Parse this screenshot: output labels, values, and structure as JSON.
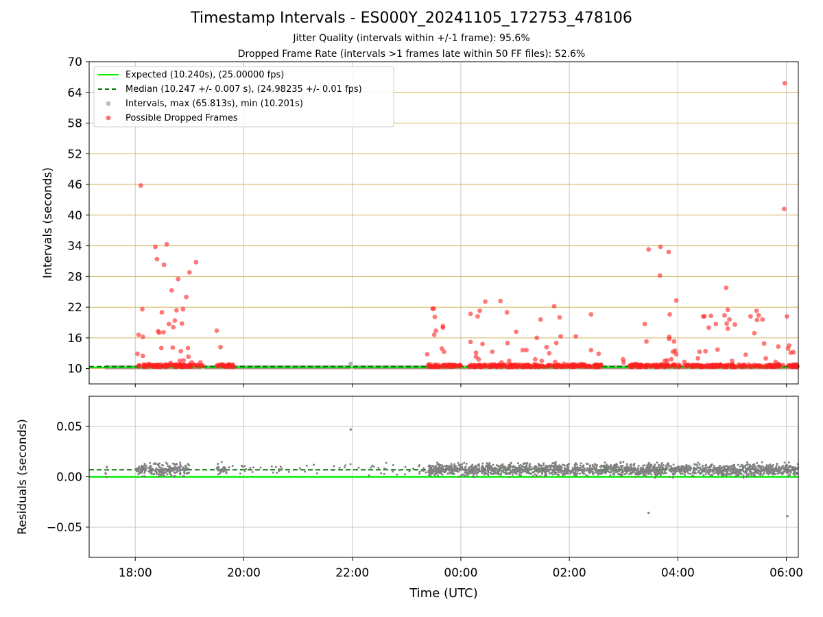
{
  "header": {
    "title": "Timestamp Intervals - ES000Y_20241105_172753_478106",
    "subtitle1": "Jitter Quality (intervals within +/-1 frame): 95.6%",
    "subtitle2": "Dropped Frame Rate (intervals >1 frames late within 50 FF files): 52.6%"
  },
  "colors": {
    "expected": "#00ee00",
    "median": "#007700",
    "intervals": "#999999",
    "dropped": "#ff2020",
    "hgrid": "#d2b25a",
    "vgrid": "#c8c8c8"
  },
  "chart_data": [
    {
      "type": "scatter",
      "panel": "intervals",
      "xlabel": "",
      "ylabel": "Intervals (seconds)",
      "x_unit": "hours since 00:00 UTC",
      "xlim": [
        -6.85,
        6.22
      ],
      "ylim": [
        7,
        70
      ],
      "yticks": [
        10,
        16,
        22,
        28,
        34,
        40,
        46,
        52,
        58,
        64,
        70
      ],
      "xticks": [
        -6,
        -4,
        -2,
        0,
        2,
        4,
        6
      ],
      "grid": true,
      "legend_position": "top-left",
      "legend": [
        "Expected (10.240s), (25.00000 fps)",
        "Median (10.247 +/- 0.007 s), (24.98235 +/- 0.01 fps)",
        "Intervals, max (65.813s), min (10.201s)",
        "Possible Dropped Frames"
      ],
      "expected_value": 10.24,
      "median_value": 10.247,
      "baseline_segments": [
        [
          -6.53,
          -4.78
        ],
        [
          -4.7,
          -2.03
        ],
        [
          -1.95,
          6.22
        ]
      ],
      "dropped_clusters": [
        [
          -5.95,
          -4.75
        ],
        [
          -4.5,
          -4.18
        ],
        [
          -0.62,
          0.0
        ],
        [
          0.15,
          1.5
        ],
        [
          1.5,
          2.6
        ],
        [
          3.1,
          5.95
        ],
        [
          6.0,
          6.22
        ]
      ],
      "dropped_points": [
        [
          -5.96,
          12.9
        ],
        [
          -5.94,
          16.6
        ],
        [
          -5.9,
          45.8
        ],
        [
          -5.87,
          21.6
        ],
        [
          -5.86,
          16.2
        ],
        [
          -5.86,
          12.5
        ],
        [
          -5.75,
          10.9
        ],
        [
          -5.7,
          10.6
        ],
        [
          -5.63,
          33.8
        ],
        [
          -5.6,
          31.4
        ],
        [
          -5.58,
          17.3
        ],
        [
          -5.56,
          17.0
        ],
        [
          -5.52,
          14.0
        ],
        [
          -5.51,
          21.0
        ],
        [
          -5.48,
          17.1
        ],
        [
          -5.47,
          30.3
        ],
        [
          -5.42,
          34.3
        ],
        [
          -5.38,
          18.7
        ],
        [
          -5.35,
          11.1
        ],
        [
          -5.33,
          25.3
        ],
        [
          -5.31,
          14.1
        ],
        [
          -5.3,
          18.1
        ],
        [
          -5.27,
          19.4
        ],
        [
          -5.24,
          21.4
        ],
        [
          -5.21,
          27.5
        ],
        [
          -5.18,
          11.5
        ],
        [
          -5.16,
          13.4
        ],
        [
          -5.14,
          18.8
        ],
        [
          -5.12,
          21.6
        ],
        [
          -5.11,
          11.6
        ],
        [
          -5.06,
          24.0
        ],
        [
          -5.03,
          14.0
        ],
        [
          -5.02,
          12.3
        ],
        [
          -5.0,
          28.8
        ],
        [
          -4.96,
          11.2
        ],
        [
          -4.92,
          10.8
        ],
        [
          -4.88,
          30.8
        ],
        [
          -4.8,
          11.2
        ],
        [
          -4.5,
          17.4
        ],
        [
          -4.43,
          14.2
        ],
        [
          -4.38,
          10.5
        ],
        [
          -0.62,
          12.8
        ],
        [
          -0.52,
          21.7
        ],
        [
          -0.5,
          21.7
        ],
        [
          -0.49,
          16.6
        ],
        [
          -0.48,
          20.1
        ],
        [
          -0.46,
          17.4
        ],
        [
          -0.35,
          13.9
        ],
        [
          -0.33,
          18.3
        ],
        [
          -0.33,
          18.0
        ],
        [
          -0.31,
          13.3
        ],
        [
          0.18,
          15.2
        ],
        [
          0.18,
          20.7
        ],
        [
          0.28,
          13.1
        ],
        [
          0.28,
          12.3
        ],
        [
          0.31,
          20.2
        ],
        [
          0.33,
          11.8
        ],
        [
          0.35,
          21.3
        ],
        [
          0.4,
          14.8
        ],
        [
          0.45,
          23.1
        ],
        [
          0.58,
          13.3
        ],
        [
          0.73,
          23.2
        ],
        [
          0.75,
          11.2
        ],
        [
          0.85,
          21.0
        ],
        [
          0.86,
          15.0
        ],
        [
          0.89,
          11.5
        ],
        [
          1.02,
          17.2
        ],
        [
          1.14,
          13.6
        ],
        [
          1.21,
          13.6
        ],
        [
          1.37,
          11.8
        ],
        [
          1.4,
          16.0
        ],
        [
          1.47,
          19.6
        ],
        [
          1.49,
          11.5
        ],
        [
          1.58,
          14.2
        ],
        [
          1.63,
          13.0
        ],
        [
          1.72,
          22.2
        ],
        [
          1.74,
          11.3
        ],
        [
          1.76,
          15.0
        ],
        [
          1.82,
          20.0
        ],
        [
          1.84,
          16.3
        ],
        [
          1.9,
          10.9
        ],
        [
          2.12,
          16.3
        ],
        [
          2.22,
          10.9
        ],
        [
          2.4,
          20.6
        ],
        [
          2.4,
          13.6
        ],
        [
          2.54,
          12.9
        ],
        [
          2.99,
          11.8
        ],
        [
          3.0,
          11.2
        ],
        [
          3.15,
          10.8
        ],
        [
          3.23,
          10.9
        ],
        [
          3.39,
          18.7
        ],
        [
          3.42,
          15.3
        ],
        [
          3.46,
          33.3
        ],
        [
          3.54,
          10.6
        ],
        [
          3.67,
          28.2
        ],
        [
          3.68,
          33.8
        ],
        [
          3.76,
          11.5
        ],
        [
          3.8,
          11.6
        ],
        [
          3.83,
          32.8
        ],
        [
          3.84,
          15.8
        ],
        [
          3.84,
          16.2
        ],
        [
          3.85,
          20.6
        ],
        [
          3.88,
          11.8
        ],
        [
          3.91,
          13.3
        ],
        [
          3.93,
          15.3
        ],
        [
          3.95,
          13.5
        ],
        [
          3.97,
          12.8
        ],
        [
          3.97,
          23.3
        ],
        [
          4.12,
          11.3
        ],
        [
          4.37,
          12.0
        ],
        [
          4.4,
          13.3
        ],
        [
          4.47,
          20.2
        ],
        [
          4.49,
          20.2
        ],
        [
          4.51,
          13.4
        ],
        [
          4.57,
          18.0
        ],
        [
          4.61,
          20.3
        ],
        [
          4.7,
          18.7
        ],
        [
          4.73,
          13.7
        ],
        [
          4.86,
          20.4
        ],
        [
          4.89,
          25.8
        ],
        [
          4.9,
          18.8
        ],
        [
          4.92,
          17.8
        ],
        [
          4.92,
          21.5
        ],
        [
          4.95,
          19.6
        ],
        [
          5.0,
          11.5
        ],
        [
          5.05,
          18.6
        ],
        [
          5.25,
          12.7
        ],
        [
          5.34,
          20.2
        ],
        [
          5.41,
          16.9
        ],
        [
          5.45,
          21.3
        ],
        [
          5.46,
          19.5
        ],
        [
          5.49,
          20.4
        ],
        [
          5.56,
          19.6
        ],
        [
          5.59,
          14.9
        ],
        [
          5.62,
          12.0
        ],
        [
          5.8,
          11.3
        ],
        [
          5.85,
          14.3
        ],
        [
          5.96,
          41.2
        ],
        [
          5.97,
          65.8
        ],
        [
          6.01,
          20.2
        ],
        [
          6.03,
          13.9
        ],
        [
          6.05,
          14.5
        ],
        [
          6.08,
          13.1
        ],
        [
          6.13,
          13.2
        ]
      ],
      "interval_points": [
        [
          -6.53,
          10.25
        ],
        [
          -4.7,
          10.25
        ],
        [
          -2.03,
          10.9
        ],
        [
          -1.95,
          10.25
        ],
        [
          1.98,
          10.5
        ],
        [
          3.2,
          10.8
        ],
        [
          3.3,
          10.6
        ],
        [
          5.75,
          10.4
        ],
        [
          5.85,
          10.9
        ]
      ]
    },
    {
      "type": "scatter",
      "panel": "residuals",
      "xlabel": "Time (UTC)",
      "ylabel": "Residuals (seconds)",
      "x_unit": "hours since 00:00 UTC",
      "xlim": [
        -6.85,
        6.22
      ],
      "ylim": [
        -0.08,
        0.08
      ],
      "ytick_labels": [
        "0.05",
        "0.00",
        "−0.05"
      ],
      "yticks": [
        0.05,
        0.0,
        -0.05
      ],
      "xtick_labels": [
        "18:00",
        "20:00",
        "22:00",
        "00:00",
        "02:00",
        "04:00",
        "06:00"
      ],
      "xticks": [
        -6,
        -4,
        -2,
        0,
        2,
        4,
        6
      ],
      "expected_residual": 0.0,
      "median_residual": 0.007,
      "residual_spread": 0.004,
      "outliers": [
        [
          -2.03,
          0.047
        ],
        [
          3.46,
          -0.036
        ],
        [
          6.02,
          -0.039
        ]
      ]
    }
  ]
}
